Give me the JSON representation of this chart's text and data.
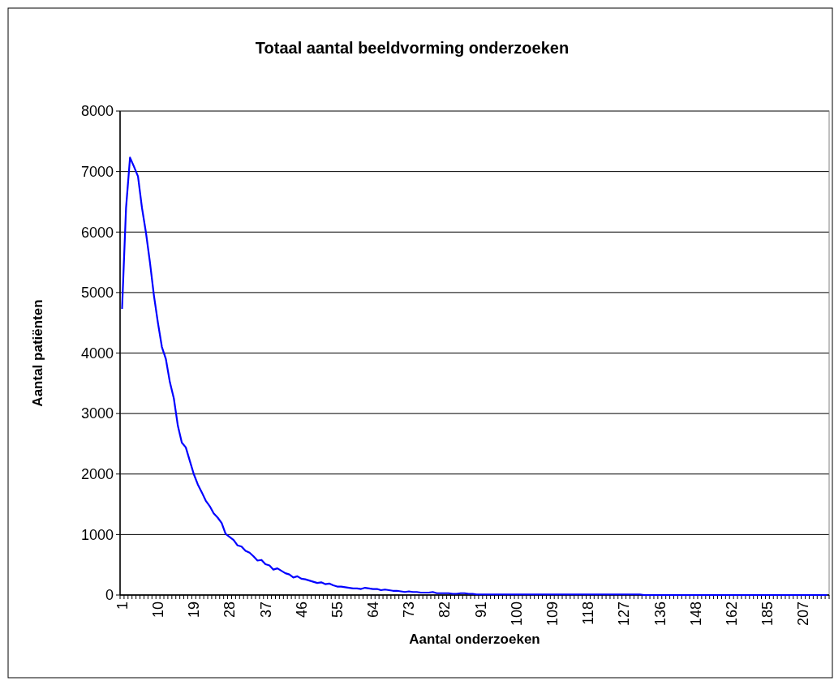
{
  "chart_data": {
    "type": "line",
    "title": "Totaal aantal beeldvorming onderzoeken",
    "xlabel": "Aantal onderzoeken",
    "ylabel": "Aantal patiënten",
    "categories": [
      "1",
      null,
      null,
      null,
      null,
      null,
      null,
      null,
      null,
      "10",
      null,
      null,
      null,
      null,
      null,
      null,
      null,
      null,
      "19",
      null,
      null,
      null,
      null,
      null,
      null,
      null,
      null,
      "28",
      null,
      null,
      null,
      null,
      null,
      null,
      null,
      null,
      "37",
      null,
      null,
      null,
      null,
      null,
      null,
      null,
      null,
      "46",
      null,
      null,
      null,
      null,
      null,
      null,
      null,
      null,
      "55",
      null,
      null,
      null,
      null,
      null,
      null,
      null,
      null,
      "64",
      null,
      null,
      null,
      null,
      null,
      null,
      null,
      null,
      "73",
      null,
      null,
      null,
      null,
      null,
      null,
      null,
      null,
      "82",
      null,
      null,
      null,
      null,
      null,
      null,
      null,
      null,
      "91",
      null,
      null,
      null,
      null,
      null,
      null,
      null,
      null,
      "100",
      null,
      null,
      null,
      null,
      null,
      null,
      null,
      null,
      "109",
      null,
      null,
      null,
      null,
      null,
      null,
      null,
      null,
      "118",
      null,
      null,
      null,
      null,
      null,
      null,
      null,
      null,
      "127",
      null,
      null,
      null,
      null,
      null,
      null,
      null,
      null,
      "136",
      null,
      null,
      null,
      null,
      null,
      null,
      null,
      null,
      "148",
      null,
      null,
      null,
      null,
      null,
      null,
      null,
      null,
      "162",
      null,
      null,
      null,
      null,
      null,
      null,
      null,
      null,
      "185",
      null,
      null,
      null,
      null,
      null,
      null,
      null,
      null,
      "207",
      null,
      null,
      null,
      null,
      null,
      null
    ],
    "series": [
      {
        "color": "#0000ff",
        "values": [
          4730,
          6400,
          7230,
          7080,
          6920,
          6400,
          5990,
          5500,
          4950,
          4500,
          4100,
          3900,
          3520,
          3250,
          2800,
          2520,
          2440,
          2220,
          2000,
          1830,
          1700,
          1560,
          1470,
          1350,
          1280,
          1190,
          1010,
          960,
          910,
          820,
          800,
          730,
          700,
          640,
          570,
          580,
          510,
          490,
          420,
          440,
          400,
          360,
          340,
          290,
          310,
          270,
          260,
          240,
          220,
          200,
          210,
          180,
          190,
          160,
          140,
          140,
          130,
          120,
          110,
          110,
          100,
          120,
          110,
          100,
          100,
          80,
          90,
          80,
          70,
          70,
          60,
          50,
          60,
          50,
          50,
          40,
          40,
          40,
          50,
          30,
          30,
          30,
          30,
          20,
          20,
          30,
          30,
          20,
          20,
          10,
          10,
          10,
          10,
          10,
          10,
          10,
          10,
          10,
          10,
          10,
          10,
          10,
          10,
          10,
          10,
          10,
          10,
          10,
          10,
          10,
          10,
          10,
          10,
          10,
          10,
          10,
          10,
          10,
          10,
          10,
          10,
          10,
          10,
          10,
          10,
          10,
          10,
          10,
          10,
          10,
          10,
          0,
          0,
          0,
          0,
          0,
          0,
          0,
          0,
          0,
          0,
          0,
          0,
          0,
          0,
          0,
          0,
          0,
          0,
          0,
          0,
          0,
          0,
          0,
          0,
          0,
          0,
          0,
          0,
          0,
          0,
          0,
          0,
          0,
          0,
          0,
          0,
          0,
          0,
          0,
          0,
          0,
          0,
          0,
          0,
          0,
          0,
          0
        ]
      }
    ],
    "ylim": [
      0,
      8000
    ],
    "yticks": [
      0,
      1000,
      2000,
      3000,
      4000,
      5000,
      6000,
      7000,
      8000
    ],
    "grid": "y"
  }
}
